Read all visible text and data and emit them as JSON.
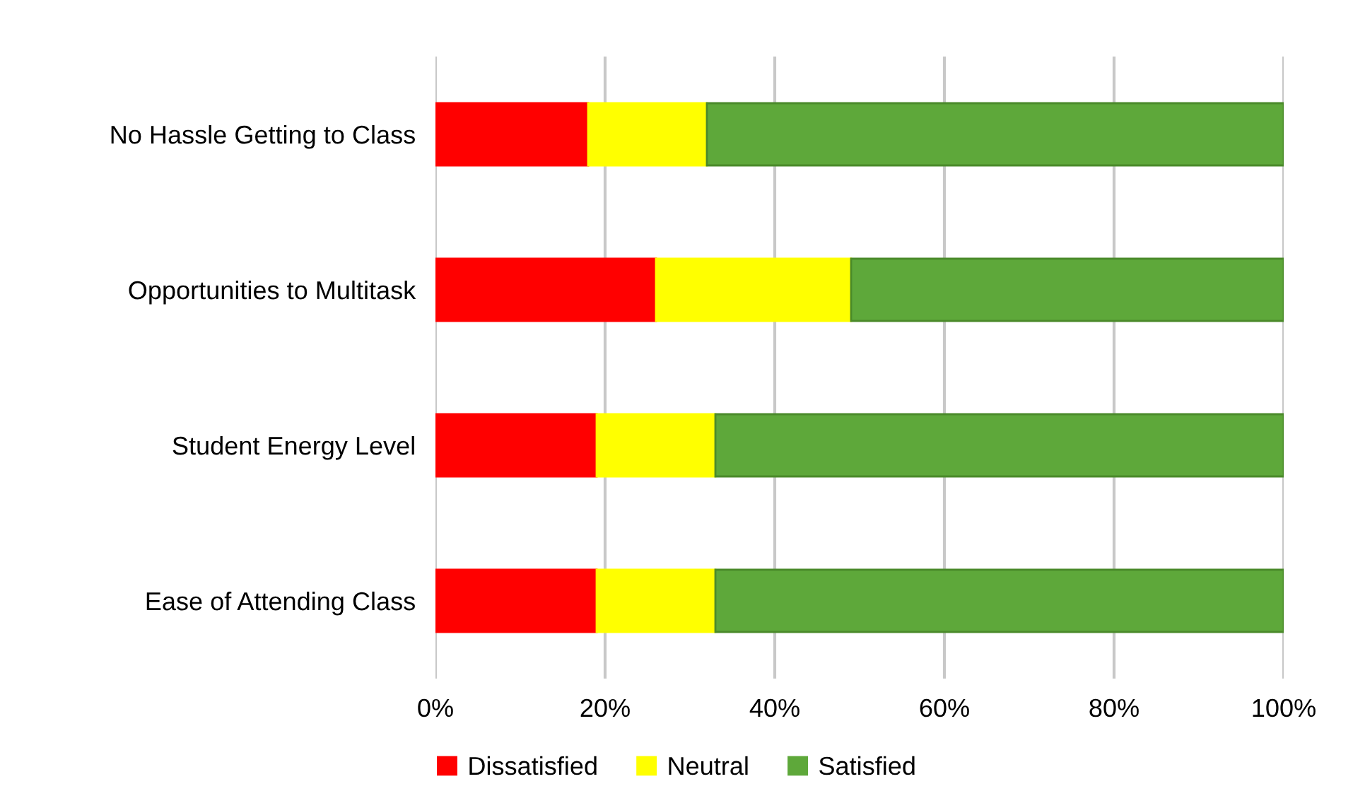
{
  "chart_data": {
    "type": "bar",
    "orientation": "horizontal",
    "stacked": true,
    "categories": [
      "No Hassle Getting to Class",
      "Opportunities to Multitask",
      "Student Energy Level",
      "Ease of Attending Class"
    ],
    "series": [
      {
        "name": "Dissatisfied",
        "color": "#ff0000",
        "values": [
          18,
          26,
          19,
          19
        ]
      },
      {
        "name": "Neutral",
        "color": "#ffff00",
        "values": [
          14,
          23,
          14,
          14
        ]
      },
      {
        "name": "Satisfied",
        "color": "#5ea83a",
        "values": [
          68,
          51,
          67,
          67
        ]
      }
    ],
    "xlim": [
      0,
      100
    ],
    "xticks": [
      {
        "value": 0,
        "label": "0%"
      },
      {
        "value": 20,
        "label": "20%"
      },
      {
        "value": 40,
        "label": "40%"
      },
      {
        "value": 60,
        "label": "60%"
      },
      {
        "value": 80,
        "label": "80%"
      },
      {
        "value": 100,
        "label": "100%"
      }
    ],
    "grid": "x",
    "legend": "bottom"
  }
}
